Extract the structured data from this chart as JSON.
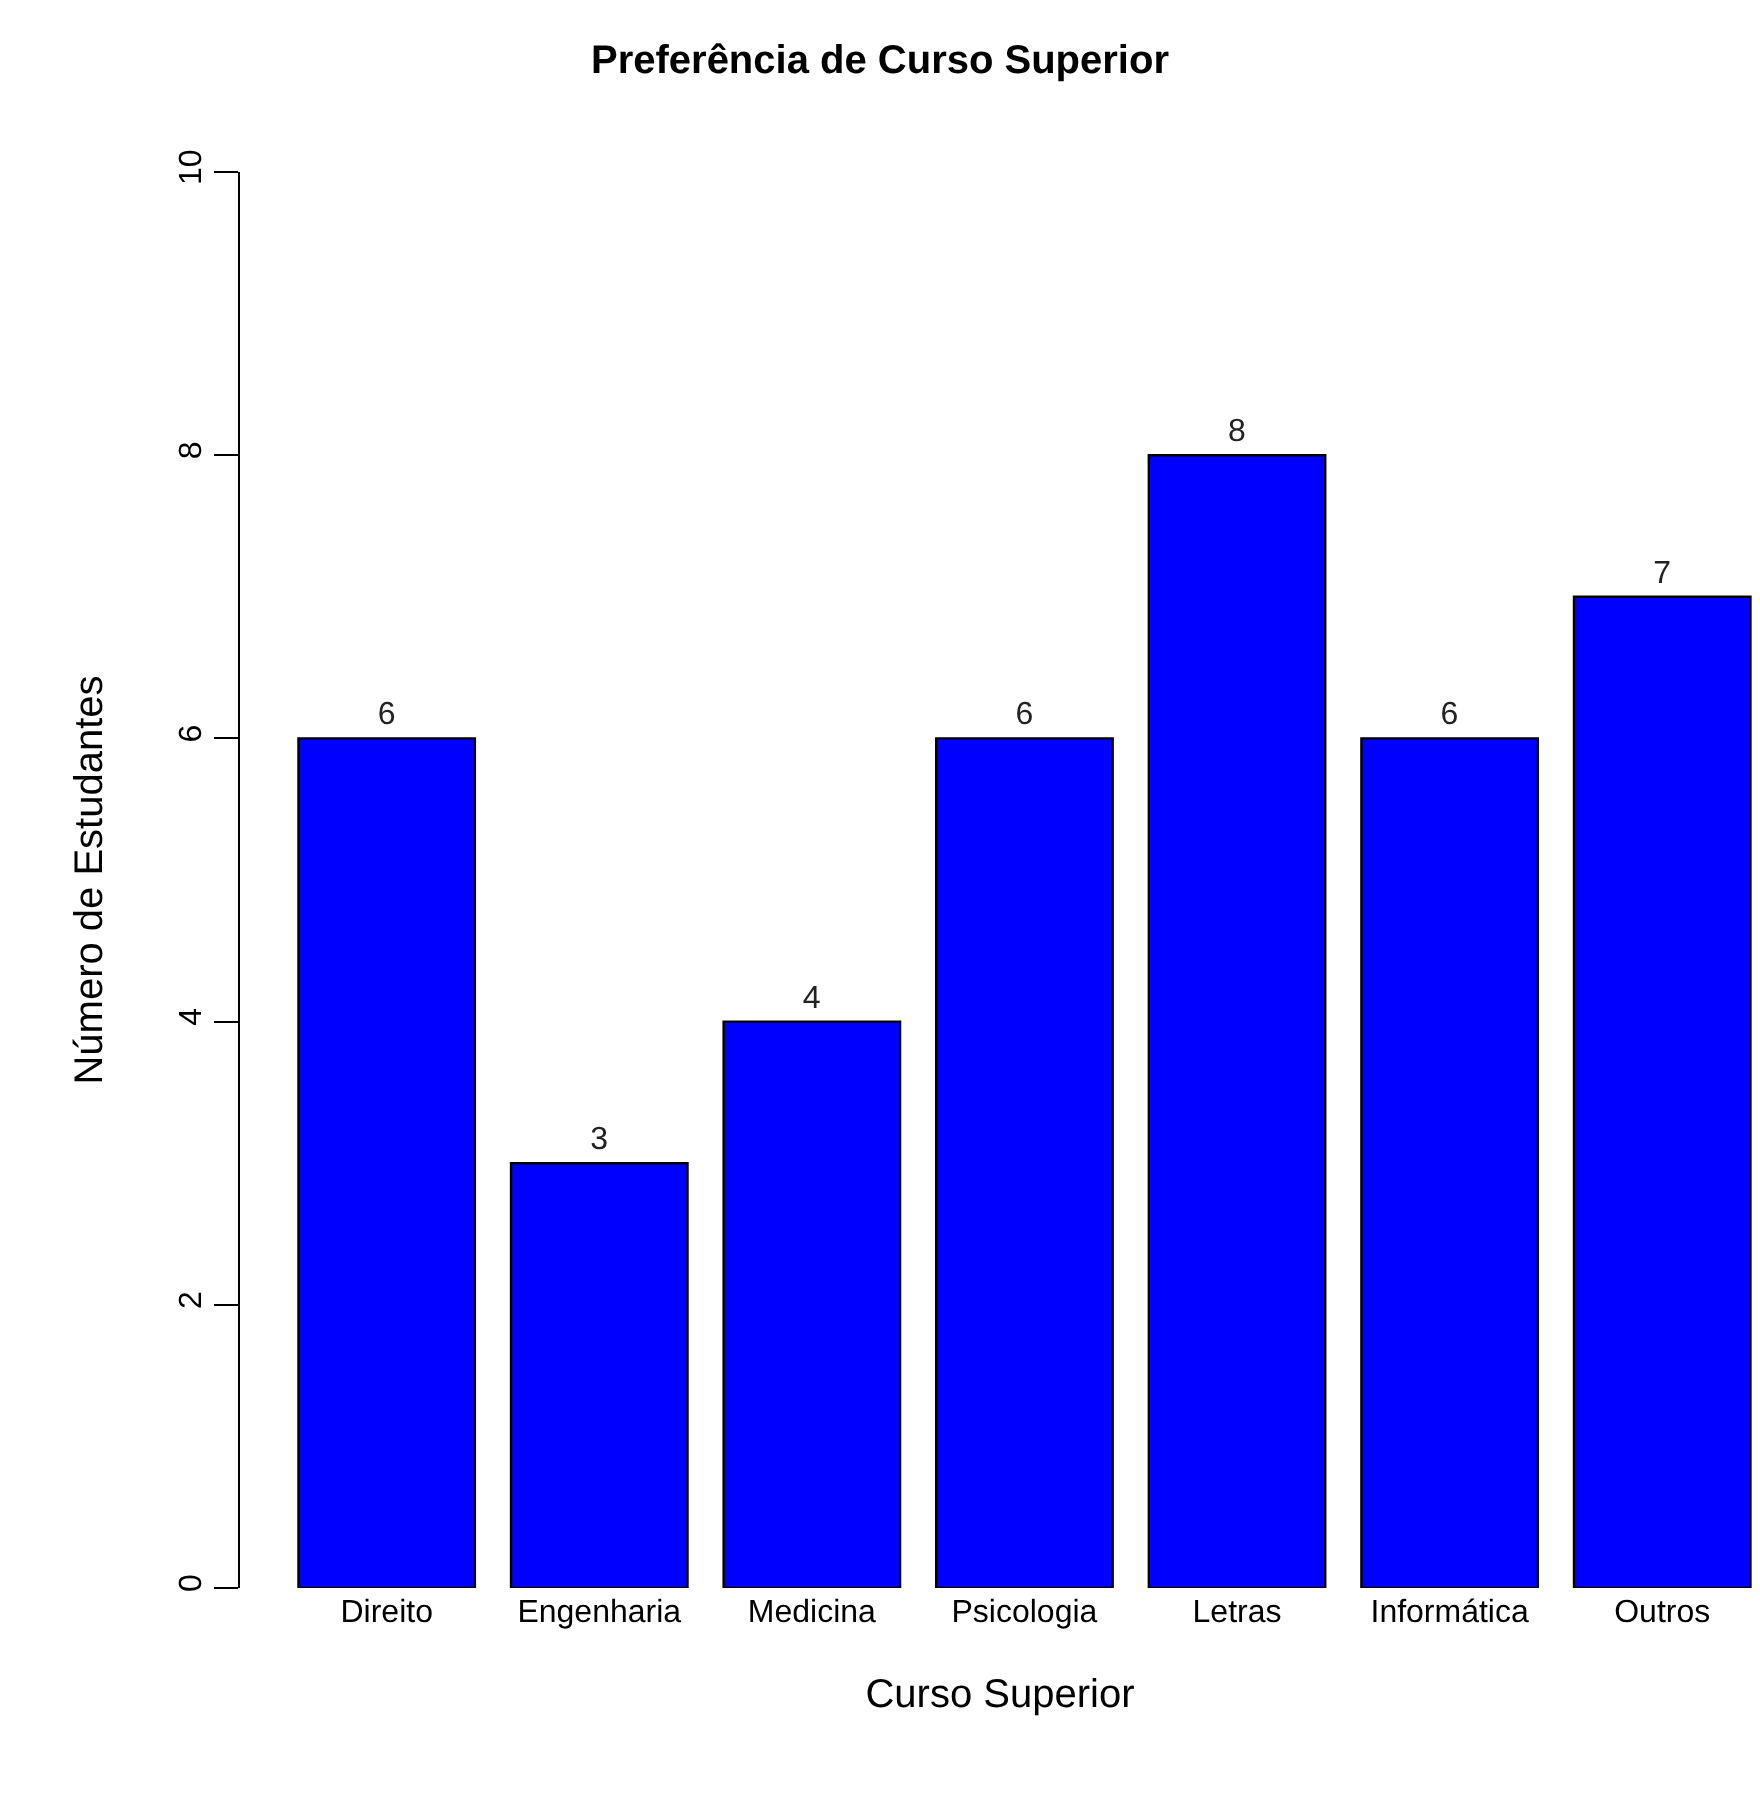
{
  "chart_data": {
    "type": "bar",
    "title": "Preferência de Curso Superior",
    "xlabel": "Curso Superior",
    "ylabel": "Número de Estudantes",
    "categories": [
      "Direito",
      "Engenharia",
      "Medicina",
      "Psicologia",
      "Letras",
      "Informática",
      "Outros"
    ],
    "values": [
      6,
      3,
      4,
      6,
      8,
      6,
      7
    ],
    "color": "#0000ff",
    "ylim": [
      0,
      10
    ],
    "yticks": [
      0,
      2,
      4,
      6,
      8,
      10
    ],
    "data_labels": true
  }
}
